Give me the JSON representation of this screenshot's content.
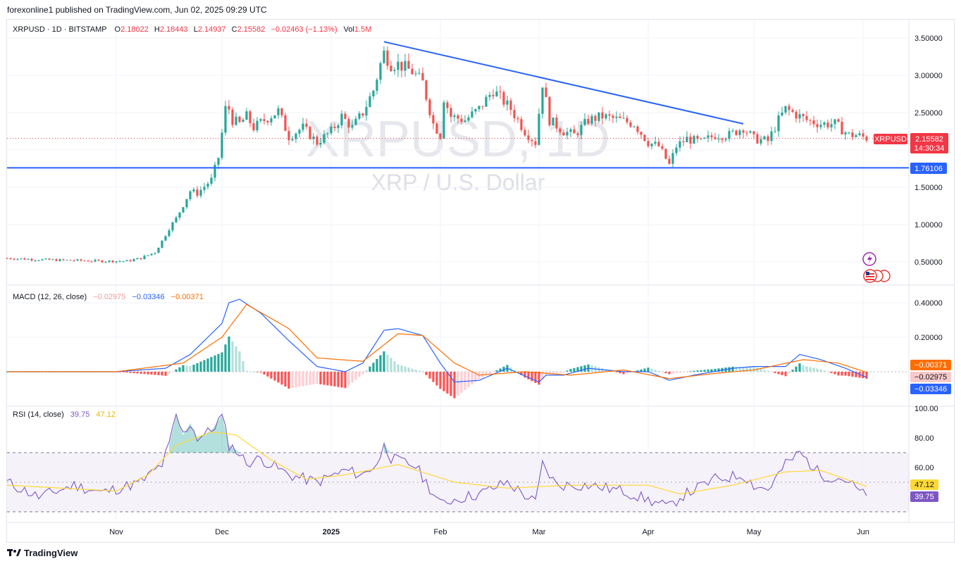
{
  "header": {
    "publisher": "forexonline1 published on TradingView.com, Jun 02, 2025 09:29 UTC"
  },
  "legend": {
    "symbol": "XRPUSD · 1D · BITSTAMP",
    "o_label": "O",
    "o": "2.18022",
    "h_label": "H",
    "h": "2.18443",
    "l_label": "L",
    "l": "2.14937",
    "c_label": "C",
    "c": "2.15582",
    "change": "−0.02463 (−1.13%)",
    "vol_label": "Vol",
    "vol": "1.5M"
  },
  "watermark": {
    "title": "XRPUSD, 1D",
    "subtitle": "XRP / U.S. Dollar"
  },
  "macd": {
    "label": "MACD (12, 26, close)",
    "hist": "−0.02975",
    "macd": "−0.03346",
    "signal": "−0.00371"
  },
  "rsi": {
    "label": "RSI (14, close)",
    "value": "39.75",
    "ma": "47.12"
  },
  "badges": {
    "price_symbol": "XRPUSD",
    "price": "2.15582",
    "countdown": "14:30:34",
    "support": "1.76106",
    "macd_signal": "−0.00371",
    "macd_hist": "−0.02975",
    "macd_line": "−0.03346",
    "rsi_ma": "47.12",
    "rsi_value": "39.75"
  },
  "footer": {
    "brand": "TradingView"
  },
  "colors": {
    "up": "#26a69a",
    "down": "#ef5350",
    "macd": "#2962ff",
    "signal": "#ff6d00",
    "rsi": "#7e57c2",
    "rsi_ma": "#fdd835",
    "line": "#2962ff"
  },
  "chart_data": [
    {
      "type": "candlestick",
      "symbol": "XRPUSD",
      "y_axis_ticks": [
        "0.50000",
        "1.00000",
        "1.50000",
        "2.00000",
        "2.50000",
        "3.00000",
        "3.50000"
      ],
      "ylim": [
        0.3,
        3.65
      ],
      "x_ticks": [
        {
          "date": "2024-11-01",
          "label": "Nov"
        },
        {
          "date": "2024-12-01",
          "label": "Dec"
        },
        {
          "date": "2025-01-01",
          "label": "2025"
        },
        {
          "date": "2025-02-01",
          "label": "Feb"
        },
        {
          "date": "2025-03-01",
          "label": "Mar"
        },
        {
          "date": "2025-04-01",
          "label": "Apr"
        },
        {
          "date": "2025-05-01",
          "label": "May"
        },
        {
          "date": "2025-06-01",
          "label": "Jun"
        }
      ],
      "close_series": {
        "dates": [
          "2024-10-01",
          "2024-10-10",
          "2024-10-20",
          "2024-10-28",
          "2024-11-04",
          "2024-11-08",
          "2024-11-12",
          "2024-11-14",
          "2024-11-16",
          "2024-11-18",
          "2024-11-22",
          "2024-11-24",
          "2024-11-28",
          "2024-11-30",
          "2024-12-02",
          "2024-12-03",
          "2024-12-04",
          "2024-12-06",
          "2024-12-08",
          "2024-12-10",
          "2024-12-13",
          "2024-12-17",
          "2024-12-20",
          "2024-12-24",
          "2024-12-28",
          "2025-01-01",
          "2025-01-04",
          "2025-01-07",
          "2025-01-10",
          "2025-01-13",
          "2025-01-15",
          "2025-01-16",
          "2025-01-18",
          "2025-01-20",
          "2025-01-24",
          "2025-01-27",
          "2025-01-30",
          "2025-02-01",
          "2025-02-02",
          "2025-02-04",
          "2025-02-08",
          "2025-02-12",
          "2025-02-16",
          "2025-02-21",
          "2025-02-25",
          "2025-02-28",
          "2025-03-02",
          "2025-03-04",
          "2025-03-08",
          "2025-03-11",
          "2025-03-15",
          "2025-03-19",
          "2025-03-24",
          "2025-03-28",
          "2025-04-01",
          "2025-04-04",
          "2025-04-07",
          "2025-04-09",
          "2025-04-12",
          "2025-04-16",
          "2025-04-20",
          "2025-04-24",
          "2025-04-28",
          "2025-05-01",
          "2025-05-05",
          "2025-05-08",
          "2025-05-10",
          "2025-05-12",
          "2025-05-16",
          "2025-05-20",
          "2025-05-24",
          "2025-05-28",
          "2025-05-30",
          "2025-06-02"
        ],
        "close": [
          0.55,
          0.53,
          0.52,
          0.51,
          0.51,
          0.55,
          0.63,
          0.78,
          0.95,
          1.08,
          1.45,
          1.42,
          1.6,
          1.9,
          2.55,
          2.55,
          2.4,
          2.35,
          2.45,
          2.3,
          2.4,
          2.52,
          2.18,
          2.3,
          2.1,
          2.25,
          2.45,
          2.3,
          2.5,
          2.8,
          3.15,
          3.3,
          3.15,
          3.15,
          3.05,
          2.9,
          2.35,
          2.2,
          2.7,
          2.45,
          2.4,
          2.55,
          2.8,
          2.55,
          2.25,
          2.1,
          2.9,
          2.4,
          2.25,
          2.2,
          2.4,
          2.45,
          2.4,
          2.35,
          2.1,
          2.05,
          1.8,
          2.05,
          2.15,
          2.1,
          2.2,
          2.2,
          2.3,
          2.15,
          2.12,
          2.4,
          2.55,
          2.5,
          2.4,
          2.35,
          2.35,
          2.2,
          2.2,
          2.16
        ]
      },
      "horizontal_line": 1.76106,
      "trendline": [
        {
          "date": "2025-01-16",
          "value": 3.45
        },
        {
          "date": "2025-04-28",
          "value": 2.35
        }
      ],
      "last_price": 2.15582
    },
    {
      "type": "line",
      "name": "MACD (12, 26, close)",
      "y_axis_ticks": [
        "0.20000",
        "0.40000"
      ],
      "ylim": [
        -0.11,
        0.44
      ],
      "series": [
        {
          "name": "MACD",
          "dates": [
            "2024-10-01",
            "2024-11-01",
            "2024-11-15",
            "2024-11-22",
            "2024-12-01",
            "2024-12-03",
            "2024-12-06",
            "2024-12-12",
            "2024-12-20",
            "2024-12-28",
            "2025-01-05",
            "2025-01-10",
            "2025-01-16",
            "2025-01-20",
            "2025-01-27",
            "2025-02-01",
            "2025-02-05",
            "2025-02-12",
            "2025-02-20",
            "2025-03-01",
            "2025-03-03",
            "2025-03-08",
            "2025-03-15",
            "2025-03-25",
            "2025-04-01",
            "2025-04-07",
            "2025-04-14",
            "2025-04-25",
            "2025-05-01",
            "2025-05-10",
            "2025-05-14",
            "2025-05-20",
            "2025-05-27",
            "2025-06-02"
          ],
          "values": [
            0.0,
            0.0,
            0.02,
            0.1,
            0.28,
            0.4,
            0.42,
            0.34,
            0.18,
            0.03,
            -0.0,
            0.05,
            0.24,
            0.25,
            0.21,
            0.05,
            -0.06,
            -0.05,
            0.02,
            -0.06,
            -0.02,
            -0.02,
            0.02,
            0.0,
            0.0,
            -0.05,
            -0.02,
            0.02,
            0.03,
            0.03,
            0.1,
            0.07,
            0.02,
            -0.033
          ]
        },
        {
          "name": "Signal",
          "dates": [
            "2024-10-01",
            "2024-11-01",
            "2024-11-20",
            "2024-12-01",
            "2024-12-08",
            "2024-12-20",
            "2024-12-28",
            "2025-01-10",
            "2025-01-20",
            "2025-01-27",
            "2025-02-05",
            "2025-02-12",
            "2025-02-25",
            "2025-03-10",
            "2025-03-25",
            "2025-04-07",
            "2025-04-20",
            "2025-05-01",
            "2025-05-15",
            "2025-05-25",
            "2025-06-02"
          ],
          "values": [
            0.0,
            0.0,
            0.05,
            0.2,
            0.39,
            0.25,
            0.08,
            0.06,
            0.22,
            0.21,
            0.05,
            -0.02,
            -0.0,
            -0.02,
            0.01,
            -0.04,
            -0.01,
            0.01,
            0.07,
            0.05,
            -0.004
          ]
        }
      ],
      "histogram_last": -0.02975
    },
    {
      "type": "line",
      "name": "RSI (14, close)",
      "y_axis_ticks": [
        "60.00",
        "80.00",
        "100.00"
      ],
      "ylim": [
        0,
        100
      ],
      "levels": [
        70,
        50,
        30
      ],
      "series": [
        {
          "name": "RSI",
          "dates": [
            "2024-10-01",
            "2024-10-10",
            "2024-10-20",
            "2024-10-28",
            "2024-11-08",
            "2024-11-14",
            "2024-11-16",
            "2024-11-18",
            "2024-11-20",
            "2024-11-22",
            "2024-11-24",
            "2024-11-28",
            "2024-12-01",
            "2024-12-03",
            "2024-12-05",
            "2024-12-08",
            "2024-12-12",
            "2024-12-20",
            "2024-12-28",
            "2025-01-05",
            "2025-01-10",
            "2025-01-15",
            "2025-01-16",
            "2025-01-18",
            "2025-01-25",
            "2025-02-01",
            "2025-02-04",
            "2025-02-12",
            "2025-02-20",
            "2025-02-28",
            "2025-03-02",
            "2025-03-06",
            "2025-03-15",
            "2025-03-25",
            "2025-04-01",
            "2025-04-07",
            "2025-04-10",
            "2025-04-20",
            "2025-04-28",
            "2025-05-01",
            "2025-05-05",
            "2025-05-10",
            "2025-05-14",
            "2025-05-20",
            "2025-05-27",
            "2025-06-02"
          ],
          "values": [
            50,
            40,
            48,
            43,
            50,
            62,
            75,
            95,
            82,
            90,
            80,
            85,
            95,
            75,
            72,
            63,
            66,
            55,
            50,
            58,
            55,
            65,
            78,
            66,
            61,
            35,
            38,
            42,
            50,
            36,
            62,
            48,
            48,
            44,
            38,
            33,
            40,
            52,
            55,
            48,
            45,
            62,
            70,
            55,
            52,
            39.75
          ]
        },
        {
          "name": "RSI-based MA",
          "dates": [
            "2024-10-01",
            "2024-11-01",
            "2024-11-10",
            "2024-11-18",
            "2024-11-28",
            "2024-12-05",
            "2024-12-15",
            "2024-12-25",
            "2025-01-05",
            "2025-01-20",
            "2025-02-05",
            "2025-02-20",
            "2025-03-10",
            "2025-04-01",
            "2025-04-10",
            "2025-04-25",
            "2025-05-10",
            "2025-05-20",
            "2025-06-02"
          ],
          "values": [
            48,
            44,
            55,
            75,
            84,
            82,
            65,
            52,
            55,
            62,
            50,
            46,
            48,
            48,
            42,
            48,
            57,
            58,
            47.12
          ]
        }
      ]
    }
  ]
}
